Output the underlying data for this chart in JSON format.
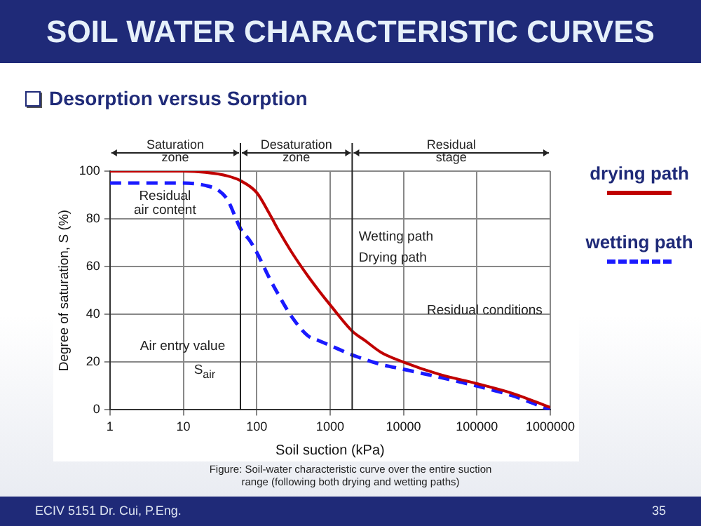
{
  "chart_data": {
    "type": "line",
    "title": "SOIL WATER CHARACTERISTIC CURVES",
    "subtitle": "Desorption versus Sorption",
    "xlabel": "Soil suction (kPa)",
    "ylabel": "Degree of saturation, S (%)",
    "log": "x",
    "xlim": [
      1,
      1000000
    ],
    "xticks": [
      1,
      10,
      100,
      1000,
      10000,
      100000,
      1000000
    ],
    "ylim": [
      0,
      100
    ],
    "yticks": [
      0,
      20,
      40,
      60,
      80,
      100
    ],
    "grid": true,
    "legend": "right",
    "marker": "none",
    "series": [
      {
        "name": "drying path",
        "color": "#c00000",
        "line_style": "solid",
        "x": [
          1,
          10,
          20,
          40,
          60,
          100,
          150,
          200,
          300,
          500,
          700,
          1000,
          2000,
          3000,
          5000,
          10000,
          30000,
          100000,
          300000,
          1000000
        ],
        "values": [
          100,
          100,
          99.5,
          98,
          96,
          91,
          82,
          75,
          66,
          56,
          50,
          44,
          33,
          29,
          24,
          20,
          15,
          11,
          7,
          1
        ]
      },
      {
        "name": "wetting path",
        "color": "#1a1aff",
        "line_style": "dashed",
        "x": [
          1,
          10,
          20,
          30,
          40,
          60,
          80,
          100,
          150,
          200,
          300,
          500,
          700,
          1000,
          2000,
          5000,
          10000,
          100000,
          300000,
          1000000
        ],
        "values": [
          95,
          95,
          94,
          92,
          88,
          76,
          71,
          66,
          55,
          48,
          39,
          31,
          29,
          27,
          23,
          19,
          17,
          10,
          6,
          0
        ]
      }
    ],
    "ref_lines": [
      {
        "axis": "x",
        "value": 60
      },
      {
        "axis": "x",
        "value": 2000
      }
    ],
    "annotations": [
      "Saturation\nzone",
      "Desaturation\nzone",
      "Residual\nstage",
      "Residual\nair content",
      "Wetting path",
      "Drying path",
      "Residual conditions",
      "Air entry value",
      "S$_{air}$",
      "Figure: Soil-water characteristic curve over the entire suction\nrange (following both drying and wetting paths)",
      "ECIV 5151 Dr. Cui, P.Eng.",
      "35"
    ]
  }
}
